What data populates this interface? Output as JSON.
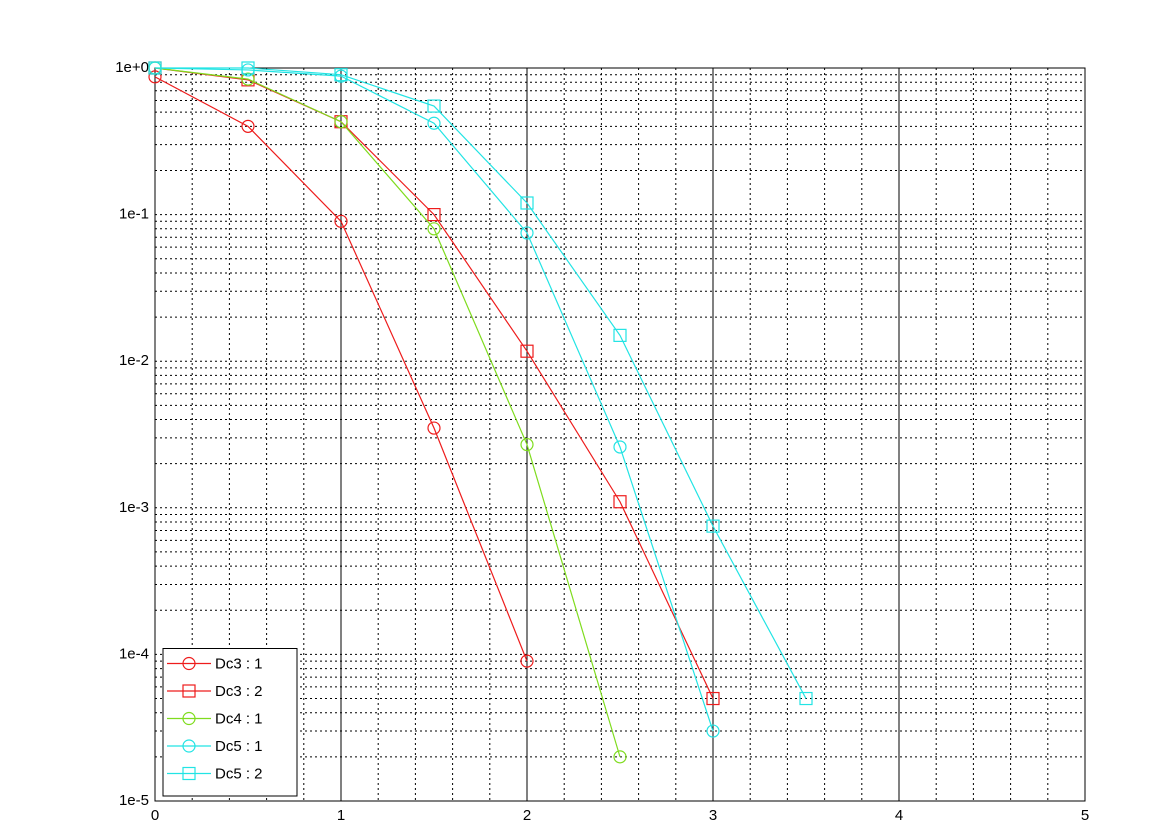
{
  "chart_data": {
    "type": "line",
    "log_y": true,
    "grid": true,
    "minor_grid": true,
    "legend_position": "lower left",
    "x": [
      0,
      0.5,
      1,
      1.5,
      2,
      2.5,
      3,
      3.5
    ],
    "series": [
      {
        "name": "Dc3 : 1",
        "color": "#ee1c1c",
        "marker": "circle",
        "values": [
          0.87,
          0.4,
          0.09,
          0.0035,
          9e-05,
          null,
          null,
          null
        ]
      },
      {
        "name": "Dc3 : 2",
        "color": "#ee1c1c",
        "marker": "square",
        "values": [
          1.0,
          0.83,
          0.43,
          0.1,
          0.0117,
          0.0011,
          5e-05,
          null
        ]
      },
      {
        "name": "Dc4 : 1",
        "color": "#7fdc1e",
        "marker": "circle",
        "values": [
          1.0,
          0.84,
          0.43,
          0.08,
          0.0027,
          2e-05,
          null,
          null
        ]
      },
      {
        "name": "Dc5 : 1",
        "color": "#22e4e4",
        "marker": "circle",
        "values": [
          1.0,
          0.97,
          0.88,
          0.42,
          0.075,
          0.0026,
          3e-05,
          null
        ]
      },
      {
        "name": "Dc5 : 2",
        "color": "#22e4e4",
        "marker": "square",
        "values": [
          1.0,
          1.0,
          0.9,
          0.55,
          0.12,
          0.015,
          0.00075,
          5e-05
        ]
      }
    ],
    "xlim": [
      0,
      5
    ],
    "xticks": [
      0,
      1,
      2,
      3,
      4,
      5
    ],
    "ylim": [
      1e-05,
      1
    ],
    "yticks": [
      {
        "value": 1e-05,
        "label": "1e-5"
      },
      {
        "value": 0.0001,
        "label": "1e-4"
      },
      {
        "value": 0.001,
        "label": "1e-3"
      },
      {
        "value": 0.01,
        "label": "1e-2"
      },
      {
        "value": 0.1,
        "label": "1e-1"
      },
      {
        "value": 1,
        "label": "1e+0"
      }
    ]
  }
}
